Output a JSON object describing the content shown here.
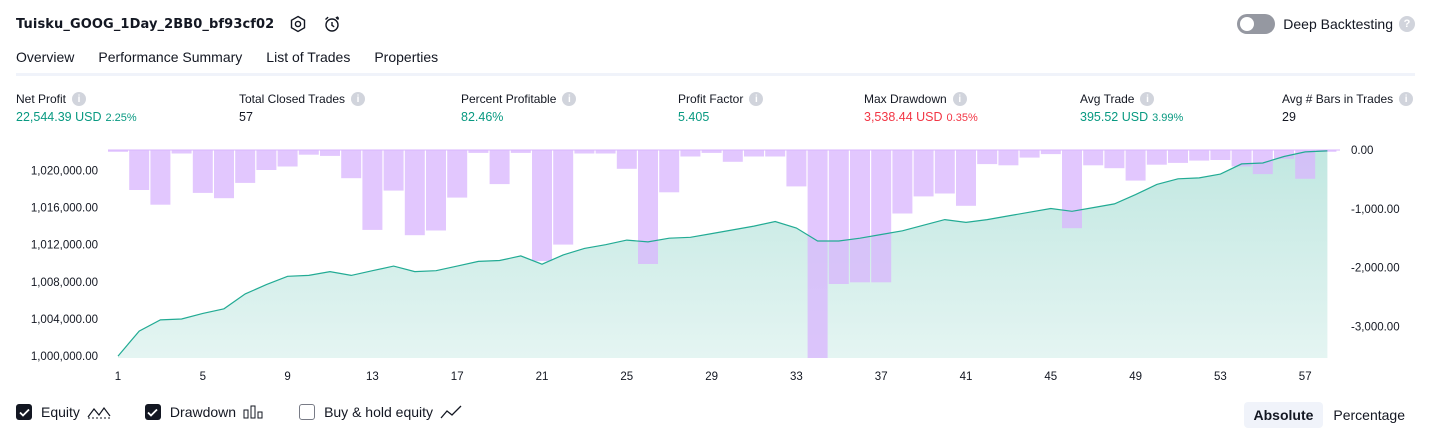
{
  "header": {
    "title": "Tuisku_GOOG_1Day_2BB0_bf93cf02",
    "deep_backtesting_label": "Deep Backtesting",
    "deep_backtesting_on": false
  },
  "tabs": [
    "Overview",
    "Performance Summary",
    "List of Trades",
    "Properties"
  ],
  "metrics": {
    "net_profit": {
      "label": "Net Profit",
      "value": "22,544.39 USD",
      "pct": "2.25%"
    },
    "total_closed_trades": {
      "label": "Total Closed Trades",
      "value": "57"
    },
    "percent_profitable": {
      "label": "Percent Profitable",
      "value": "82.46%"
    },
    "profit_factor": {
      "label": "Profit Factor",
      "value": "5.405"
    },
    "max_drawdown": {
      "label": "Max Drawdown",
      "value": "3,538.44 USD",
      "pct": "0.35%"
    },
    "avg_trade": {
      "label": "Avg Trade",
      "value": "395.52 USD",
      "pct": "3.99%"
    },
    "avg_bars": {
      "label": "Avg # Bars in Trades",
      "value": "29"
    }
  },
  "chart_data": {
    "type": "area",
    "x_ticks": [
      "1",
      "5",
      "9",
      "13",
      "17",
      "21",
      "25",
      "29",
      "33",
      "37",
      "41",
      "45",
      "49",
      "53",
      "57"
    ],
    "left_axis": {
      "ticks": [
        "1,000,000.00",
        "1,004,000.00",
        "1,008,000.00",
        "1,012,000.00",
        "1,016,000.00",
        "1,020,000.00"
      ],
      "ylim": [
        999800,
        1022200
      ]
    },
    "right_axis": {
      "ticks": [
        "0.00",
        "-1,000.00",
        "-2,000.00",
        "-3,000.00"
      ],
      "ylim": [
        -3538.44,
        0
      ]
    },
    "series": [
      {
        "name": "Equity",
        "x": [
          1,
          2,
          3,
          4,
          5,
          6,
          7,
          8,
          9,
          10,
          11,
          12,
          13,
          14,
          15,
          16,
          17,
          18,
          19,
          20,
          21,
          22,
          23,
          24,
          25,
          26,
          27,
          28,
          29,
          30,
          31,
          32,
          33,
          34,
          35,
          36,
          37,
          38,
          39,
          40,
          41,
          42,
          43,
          44,
          45,
          46,
          47,
          48,
          49,
          50,
          51,
          52,
          53,
          54,
          55,
          56,
          57,
          58
        ],
        "values": [
          1000000,
          1002700,
          1003900,
          1004000,
          1004600,
          1005100,
          1006700,
          1007700,
          1008600,
          1008700,
          1009100,
          1008700,
          1009200,
          1009700,
          1009100,
          1009200,
          1009700,
          1010200,
          1010300,
          1010800,
          1009900,
          1010900,
          1011600,
          1012000,
          1012500,
          1012300,
          1012700,
          1012800,
          1013200,
          1013600,
          1014000,
          1014500,
          1013800,
          1012400,
          1012400,
          1012700,
          1013100,
          1013500,
          1014100,
          1014700,
          1014400,
          1014700,
          1015100,
          1015500,
          1015900,
          1015600,
          1016000,
          1016400,
          1017400,
          1018500,
          1019100,
          1019200,
          1019600,
          1020700,
          1020800,
          1021500,
          1022000,
          1022100
        ]
      },
      {
        "name": "Drawdown",
        "x": [
          1,
          2,
          3,
          4,
          5,
          6,
          7,
          8,
          9,
          10,
          11,
          12,
          13,
          14,
          15,
          16,
          17,
          18,
          19,
          20,
          21,
          22,
          23,
          24,
          25,
          26,
          27,
          28,
          29,
          30,
          31,
          32,
          33,
          34,
          35,
          36,
          37,
          38,
          39,
          40,
          41,
          42,
          43,
          44,
          45,
          46,
          47,
          48,
          49,
          50,
          51,
          52,
          53,
          54,
          55,
          56,
          57,
          58
        ],
        "values": [
          -30,
          -680,
          -930,
          -60,
          -730,
          -820,
          -560,
          -340,
          -280,
          -80,
          -100,
          -480,
          -1360,
          -690,
          -1450,
          -1370,
          -810,
          -50,
          -580,
          -50,
          -1890,
          -1610,
          -60,
          -60,
          -320,
          -1940,
          -720,
          -110,
          -50,
          -200,
          -110,
          -110,
          -620,
          -3538,
          -2280,
          -2250,
          -2250,
          -1080,
          -790,
          -740,
          -950,
          -240,
          -260,
          -130,
          -70,
          -1330,
          -260,
          -310,
          -520,
          -250,
          -220,
          -180,
          -170,
          -280,
          -410,
          -150,
          -490,
          -30
        ]
      }
    ],
    "legend": [
      {
        "name": "Equity",
        "checked": true
      },
      {
        "name": "Drawdown",
        "checked": true
      },
      {
        "name": "Buy & hold equity",
        "checked": false
      }
    ]
  },
  "mode_buttons": [
    "Absolute",
    "Percentage"
  ],
  "colors": {
    "equity_line": "#22ab94",
    "drawdown_bar": "#d8b4fe",
    "accent_green": "#089981",
    "accent_red": "#f23645"
  }
}
